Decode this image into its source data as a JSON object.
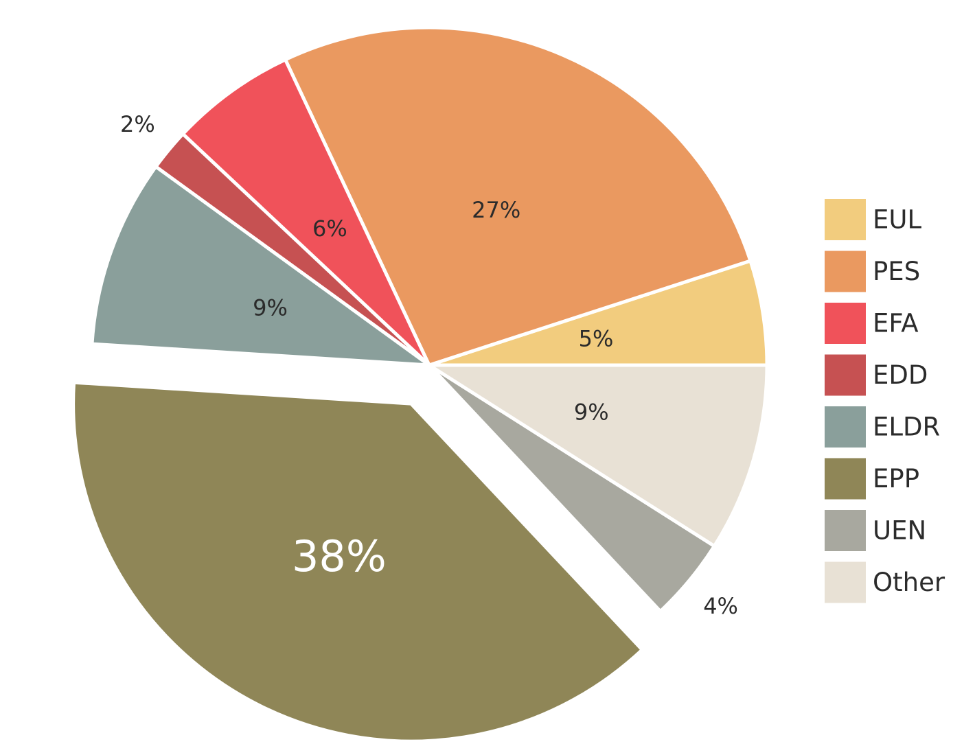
{
  "chart_data": {
    "type": "pie",
    "title": "",
    "legend_position": "right",
    "exploded": "EPP",
    "slices": [
      {
        "name": "EUL",
        "value": 5,
        "label": "5%",
        "color": "#f2cc7e"
      },
      {
        "name": "PES",
        "value": 27,
        "label": "27%",
        "color": "#ea9960"
      },
      {
        "name": "EFA",
        "value": 6,
        "label": "6%",
        "color": "#f0525a"
      },
      {
        "name": "EDD",
        "value": 2,
        "label": "2%",
        "color": "#c65152"
      },
      {
        "name": "ELDR",
        "value": 9,
        "label": "9%",
        "color": "#8a9f9b"
      },
      {
        "name": "EPP",
        "value": 38,
        "label": "38%",
        "color": "#8f8657"
      },
      {
        "name": "UEN",
        "value": 4,
        "label": "4%",
        "color": "#a8a89f"
      },
      {
        "name": "Other",
        "value": 9,
        "label": "9%",
        "color": "#e8e1d5"
      }
    ]
  }
}
